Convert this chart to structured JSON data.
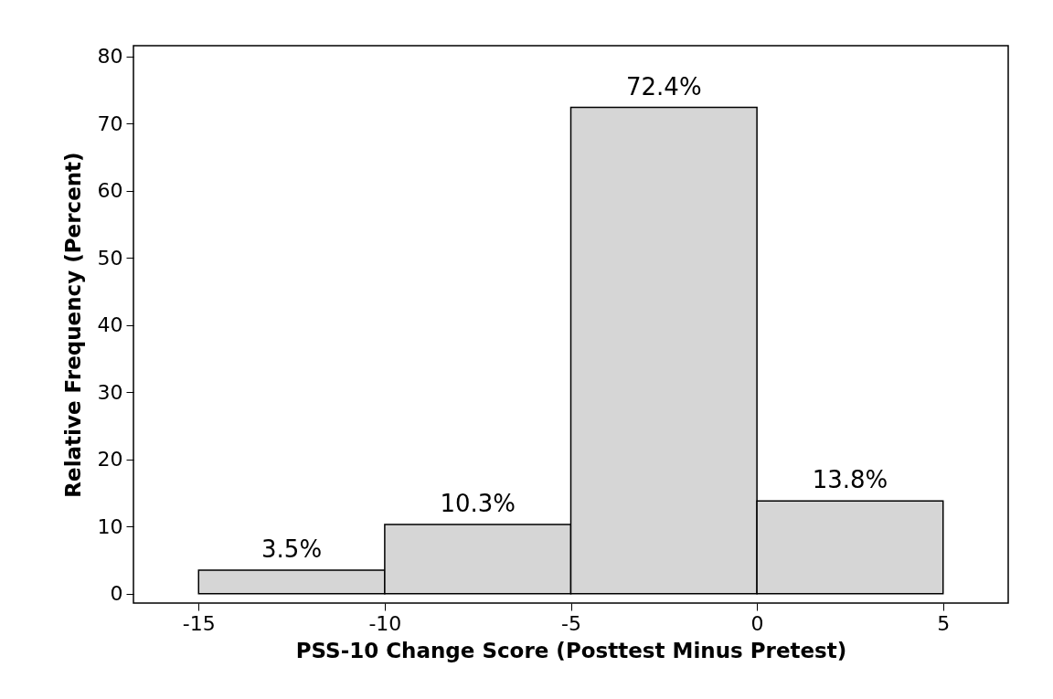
{
  "chart_data": {
    "type": "histogram",
    "xlabel": "PSS-10 Change Score (Posttest Minus Pretest)",
    "ylabel": "Relative Frequency (Percent)",
    "bins": [
      -15,
      -10,
      -5,
      0,
      5
    ],
    "values": [
      3.5,
      10.3,
      72.4,
      13.8
    ],
    "value_labels": [
      "3.5%",
      "10.3%",
      "72.4%",
      "13.8%"
    ],
    "color": "#d6d6d6",
    "xlim": [
      -16.75,
      6.75
    ],
    "xticks": [
      -15,
      -10,
      -5,
      0,
      5
    ],
    "ylim": [
      -1.4,
      81.6
    ],
    "yticks": [
      0,
      10,
      20,
      30,
      40,
      50,
      60,
      70,
      80
    ],
    "grid": false
  }
}
